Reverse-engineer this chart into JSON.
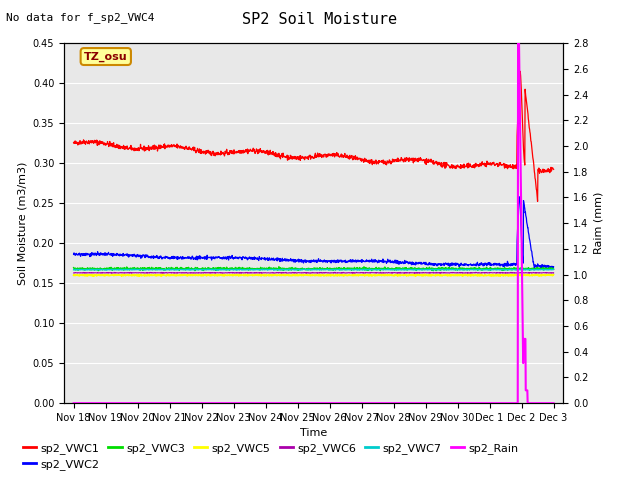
{
  "title": "SP2 Soil Moisture",
  "subtitle": "No data for f_sp2_VWC4",
  "xlabel": "Time",
  "ylabel_left": "Soil Moisture (m3/m3)",
  "ylabel_right": "Raim (mm)",
  "tz_label": "TZ_osu",
  "ylim_left": [
    0.0,
    0.45
  ],
  "ylim_right": [
    0.0,
    2.8
  ],
  "yticks_left": [
    0.0,
    0.05,
    0.1,
    0.15,
    0.2,
    0.25,
    0.3,
    0.35,
    0.4,
    0.45
  ],
  "yticks_right": [
    0.0,
    0.2,
    0.4,
    0.6,
    0.8,
    1.0,
    1.2,
    1.4,
    1.6,
    1.8,
    2.0,
    2.2,
    2.4,
    2.6,
    2.8
  ],
  "xtick_labels": [
    "Nov 18",
    "Nov 19",
    "Nov 20",
    "Nov 21",
    "Nov 22",
    "Nov 23",
    "Nov 24",
    "Nov 25",
    "Nov 26",
    "Nov 27",
    "Nov 28",
    "Nov 29",
    "Nov 30",
    "Dec 1",
    "Dec 2",
    "Dec 3"
  ],
  "colors": {
    "sp2_VWC1": "#ff0000",
    "sp2_VWC2": "#0000ff",
    "sp2_VWC3": "#00dd00",
    "sp2_VWC5": "#ffff00",
    "sp2_VWC6": "#aa00aa",
    "sp2_VWC7": "#00cccc",
    "sp2_Rain": "#ff00ff"
  },
  "bg_color": "#e8e8e8",
  "fig_bg": "#ffffff",
  "grid_color": "#ffffff",
  "title_fontsize": 11,
  "subtitle_fontsize": 8,
  "axis_label_fontsize": 8,
  "tick_fontsize": 7,
  "legend_fontsize": 8
}
